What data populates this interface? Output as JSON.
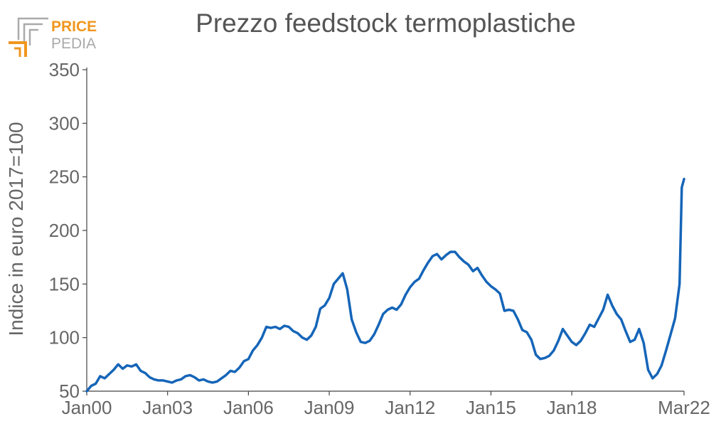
{
  "logo": {
    "line1": "PRICE",
    "line2": "PEDIA",
    "accent_color": "#f0961e",
    "gray_color": "#aaaaaa"
  },
  "chart_data": {
    "type": "line",
    "title": "Prezzo feedstock termoplastiche",
    "xlabel": "",
    "ylabel": "Indice in euro 2017=100",
    "ylim": [
      50,
      352
    ],
    "y_ticks": [
      50,
      100,
      150,
      200,
      250,
      300,
      350
    ],
    "x_ticks": [
      "Jan00",
      "Jan03",
      "Jan06",
      "Jan09",
      "Jan12",
      "Jan15",
      "Jan18",
      "Mar22"
    ],
    "x_tick_months": [
      "2000-01",
      "2003-01",
      "2006-01",
      "2009-01",
      "2012-01",
      "2015-01",
      "2018-01",
      "2022-03"
    ],
    "line_color": "#1565b8",
    "grid": false,
    "series": [
      {
        "points": [
          [
            "2000-01",
            50
          ],
          [
            "2000-03",
            55
          ],
          [
            "2000-05",
            57
          ],
          [
            "2000-07",
            64
          ],
          [
            "2000-09",
            62
          ],
          [
            "2000-11",
            66
          ],
          [
            "2001-01",
            70
          ],
          [
            "2001-03",
            75
          ],
          [
            "2001-05",
            71
          ],
          [
            "2001-07",
            74
          ],
          [
            "2001-09",
            73
          ],
          [
            "2001-11",
            75
          ],
          [
            "2002-01",
            69
          ],
          [
            "2002-03",
            67
          ],
          [
            "2002-05",
            63
          ],
          [
            "2002-07",
            61
          ],
          [
            "2002-09",
            60
          ],
          [
            "2002-11",
            60
          ],
          [
            "2003-01",
            59
          ],
          [
            "2003-03",
            58
          ],
          [
            "2003-05",
            60
          ],
          [
            "2003-07",
            61
          ],
          [
            "2003-09",
            64
          ],
          [
            "2003-11",
            65
          ],
          [
            "2004-01",
            63
          ],
          [
            "2004-03",
            60
          ],
          [
            "2004-05",
            61
          ],
          [
            "2004-07",
            59
          ],
          [
            "2004-09",
            58
          ],
          [
            "2004-11",
            59
          ],
          [
            "2005-01",
            62
          ],
          [
            "2005-03",
            65
          ],
          [
            "2005-05",
            69
          ],
          [
            "2005-07",
            68
          ],
          [
            "2005-09",
            72
          ],
          [
            "2005-11",
            78
          ],
          [
            "2006-01",
            80
          ],
          [
            "2006-03",
            88
          ],
          [
            "2006-05",
            93
          ],
          [
            "2006-07",
            100
          ],
          [
            "2006-09",
            110
          ],
          [
            "2006-11",
            109
          ],
          [
            "2007-01",
            110
          ],
          [
            "2007-03",
            108
          ],
          [
            "2007-05",
            111
          ],
          [
            "2007-07",
            110
          ],
          [
            "2007-09",
            106
          ],
          [
            "2007-11",
            104
          ],
          [
            "2008-01",
            100
          ],
          [
            "2008-03",
            98
          ],
          [
            "2008-05",
            102
          ],
          [
            "2008-07",
            110
          ],
          [
            "2008-09",
            127
          ],
          [
            "2008-11",
            130
          ],
          [
            "2009-01",
            137
          ],
          [
            "2009-03",
            150
          ],
          [
            "2009-05",
            155
          ],
          [
            "2009-07",
            160
          ],
          [
            "2009-09",
            145
          ],
          [
            "2009-11",
            117
          ],
          [
            "2010-01",
            105
          ],
          [
            "2010-03",
            96
          ],
          [
            "2010-05",
            95
          ],
          [
            "2010-07",
            97
          ],
          [
            "2010-09",
            103
          ],
          [
            "2010-11",
            112
          ],
          [
            "2011-01",
            122
          ],
          [
            "2011-03",
            126
          ],
          [
            "2011-05",
            128
          ],
          [
            "2011-07",
            126
          ],
          [
            "2011-09",
            131
          ],
          [
            "2011-11",
            140
          ],
          [
            "2012-01",
            147
          ],
          [
            "2012-03",
            152
          ],
          [
            "2012-05",
            155
          ],
          [
            "2012-07",
            163
          ],
          [
            "2012-09",
            170
          ],
          [
            "2012-11",
            176
          ],
          [
            "2013-01",
            178
          ],
          [
            "2013-03",
            173
          ],
          [
            "2013-05",
            177
          ],
          [
            "2013-07",
            180
          ],
          [
            "2013-09",
            180
          ],
          [
            "2013-11",
            175
          ],
          [
            "2014-01",
            171
          ],
          [
            "2014-03",
            168
          ],
          [
            "2014-05",
            162
          ],
          [
            "2014-07",
            165
          ],
          [
            "2014-09",
            158
          ],
          [
            "2014-11",
            152
          ],
          [
            "2015-01",
            148
          ],
          [
            "2015-03",
            145
          ],
          [
            "2015-05",
            141
          ],
          [
            "2015-07",
            125
          ],
          [
            "2015-09",
            126
          ],
          [
            "2015-11",
            125
          ],
          [
            "2016-01",
            117
          ],
          [
            "2016-03",
            107
          ],
          [
            "2016-05",
            105
          ],
          [
            "2016-07",
            98
          ],
          [
            "2016-09",
            84
          ],
          [
            "2016-11",
            80
          ],
          [
            "2017-01",
            81
          ],
          [
            "2017-03",
            83
          ],
          [
            "2017-05",
            88
          ],
          [
            "2017-07",
            97
          ],
          [
            "2017-09",
            108
          ],
          [
            "2017-11",
            102
          ],
          [
            "2018-01",
            96
          ],
          [
            "2018-03",
            93
          ],
          [
            "2018-05",
            97
          ],
          [
            "2018-07",
            104
          ],
          [
            "2018-09",
            112
          ],
          [
            "2018-11",
            110
          ],
          [
            "2019-01",
            118
          ],
          [
            "2019-03",
            126
          ],
          [
            "2019-05",
            140
          ],
          [
            "2019-07",
            130
          ],
          [
            "2019-09",
            122
          ],
          [
            "2019-11",
            117
          ],
          [
            "2020-01",
            106
          ],
          [
            "2020-03",
            96
          ],
          [
            "2020-05",
            98
          ],
          [
            "2020-07",
            108
          ],
          [
            "2020-09",
            95
          ],
          [
            "2020-11",
            70
          ],
          [
            "2021-01",
            62
          ],
          [
            "2021-03",
            66
          ],
          [
            "2021-05",
            74
          ],
          [
            "2021-07",
            88
          ],
          [
            "2021-09",
            103
          ],
          [
            "2021-11",
            118
          ],
          [
            "2022-01",
            150
          ],
          [
            "2022-02",
            240
          ],
          [
            "2022-03",
            248
          ]
        ]
      }
    ]
  }
}
